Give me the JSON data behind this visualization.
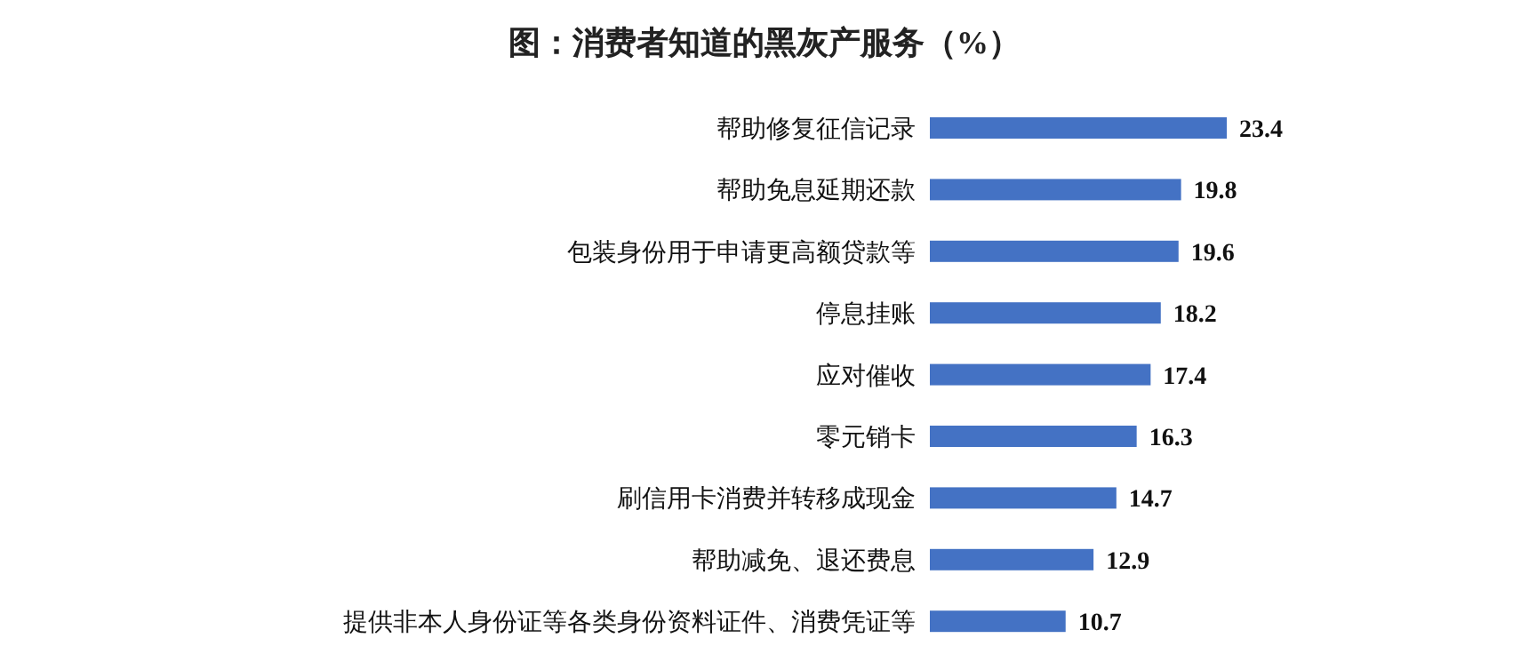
{
  "chart_data": {
    "type": "bar",
    "orientation": "horizontal",
    "title": "图：消费者知道的黑灰产服务（%）",
    "categories": [
      "帮助修复征信记录",
      "帮助免息延期还款",
      "包装身份用于申请更高额贷款等",
      "停息挂账",
      "应对催收",
      "零元销卡",
      "刷信用卡消费并转移成现金",
      "帮助减免、退还费息",
      "提供非本人身份证等各类身份资料证件、消费凭证等"
    ],
    "values": [
      23.4,
      19.8,
      19.6,
      18.2,
      17.4,
      16.3,
      14.7,
      12.9,
      10.7
    ],
    "color": "#4472c4",
    "data_labels": true
  }
}
